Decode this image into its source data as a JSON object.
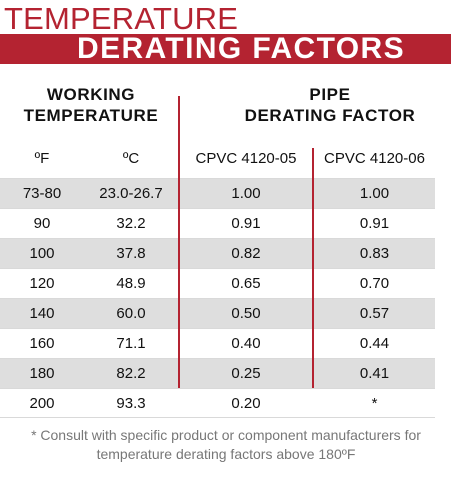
{
  "title": {
    "line1": "TEMPERATURE",
    "line2": "DERATING FACTORS"
  },
  "colors": {
    "accent": "#b42331",
    "row_shade": "#dedede",
    "footnote_text": "#777777"
  },
  "header": {
    "left_group_line1": "WORKING",
    "left_group_line2": "TEMPERATURE",
    "right_group_line1": "PIPE",
    "right_group_line2": "DERATING FACTOR"
  },
  "columns": {
    "f": "ºF",
    "c": "ºC",
    "cpvc05": "CPVC 4120-05",
    "cpvc06": "CPVC 4120-06"
  },
  "rows": [
    {
      "f": "73-80",
      "c": "23.0-26.7",
      "cpvc05": "1.00",
      "cpvc06": "1.00"
    },
    {
      "f": "90",
      "c": "32.2",
      "cpvc05": "0.91",
      "cpvc06": "0.91"
    },
    {
      "f": "100",
      "c": "37.8",
      "cpvc05": "0.82",
      "cpvc06": "0.83"
    },
    {
      "f": "120",
      "c": "48.9",
      "cpvc05": "0.65",
      "cpvc06": "0.70"
    },
    {
      "f": "140",
      "c": "60.0",
      "cpvc05": "0.50",
      "cpvc06": "0.57"
    },
    {
      "f": "160",
      "c": "71.1",
      "cpvc05": "0.40",
      "cpvc06": "0.44"
    },
    {
      "f": "180",
      "c": "82.2",
      "cpvc05": "0.25",
      "cpvc06": "0.41"
    },
    {
      "f": "200",
      "c": "93.3",
      "cpvc05": "0.20",
      "cpvc06": "*"
    }
  ],
  "footnote": {
    "line1": "* Consult with specific product or component manufacturers for",
    "line2": "temperature derating factors above 180ºF"
  }
}
